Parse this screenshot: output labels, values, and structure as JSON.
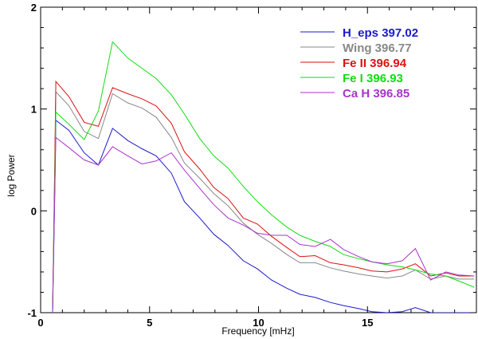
{
  "chart_data": {
    "type": "line",
    "title": "",
    "xlabel": "Frequency [mHz]",
    "ylabel": "log Power",
    "xlim": [
      0,
      20
    ],
    "ylim": [
      -1,
      2
    ],
    "xticks": [
      0,
      5,
      10,
      15
    ],
    "yticks": [
      -1,
      0,
      1,
      2
    ],
    "legend_position": "top-right",
    "series": [
      {
        "name": "H_eps 397.02",
        "color": "#1a1acc",
        "x": [
          0.55,
          0.65,
          0.7,
          1.3,
          2.0,
          2.65,
          3.3,
          4.0,
          4.65,
          5.3,
          6.0,
          6.6,
          7.3,
          7.95,
          8.6,
          9.3,
          9.95,
          10.6,
          11.3,
          11.9,
          12.6,
          13.3,
          13.9,
          14.6,
          15.2,
          15.9,
          16.6,
          17.2,
          17.9,
          18.6,
          19.2,
          19.9
        ],
        "y": [
          -1.0,
          0.2,
          0.89,
          0.79,
          0.57,
          0.45,
          0.81,
          0.69,
          0.61,
          0.54,
          0.37,
          0.09,
          -0.07,
          -0.23,
          -0.34,
          -0.49,
          -0.57,
          -0.68,
          -0.76,
          -0.82,
          -0.85,
          -0.9,
          -0.93,
          -0.96,
          -0.99,
          -1.0,
          -0.99,
          -0.95,
          -1.0,
          -1.0,
          -1.0,
          -1.0
        ]
      },
      {
        "name": "Wing 396.77",
        "color": "#888888",
        "x": [
          0.55,
          0.65,
          0.7,
          1.3,
          2.0,
          2.65,
          3.3,
          4.0,
          4.65,
          5.3,
          6.0,
          6.6,
          7.3,
          7.95,
          8.6,
          9.3,
          9.95,
          10.6,
          11.3,
          11.9,
          12.6,
          13.3,
          13.9,
          14.6,
          15.2,
          15.9,
          16.6,
          17.2,
          17.9,
          18.6,
          19.2,
          19.9
        ],
        "y": [
          -1.0,
          0.4,
          1.17,
          1.03,
          0.78,
          0.71,
          1.15,
          1.06,
          1.01,
          0.92,
          0.72,
          0.47,
          0.32,
          0.17,
          0.05,
          -0.12,
          -0.23,
          -0.32,
          -0.43,
          -0.51,
          -0.51,
          -0.56,
          -0.59,
          -0.62,
          -0.64,
          -0.66,
          -0.64,
          -0.58,
          -0.67,
          -0.64,
          -0.67,
          -0.67
        ]
      },
      {
        "name": "Fe II 396.94",
        "color": "#dd1111",
        "x": [
          0.55,
          0.65,
          0.7,
          1.3,
          2.0,
          2.65,
          3.3,
          4.0,
          4.65,
          5.3,
          6.0,
          6.6,
          7.3,
          7.95,
          8.6,
          9.3,
          9.95,
          10.6,
          11.3,
          11.9,
          12.6,
          13.3,
          13.9,
          14.6,
          15.2,
          15.9,
          16.6,
          17.2,
          17.9,
          18.6,
          19.2,
          19.9
        ],
        "y": [
          -1.0,
          0.5,
          1.27,
          1.12,
          0.87,
          0.83,
          1.21,
          1.15,
          1.1,
          1.03,
          0.86,
          0.58,
          0.41,
          0.23,
          0.12,
          -0.07,
          -0.13,
          -0.25,
          -0.36,
          -0.45,
          -0.44,
          -0.51,
          -0.53,
          -0.56,
          -0.59,
          -0.6,
          -0.57,
          -0.52,
          -0.64,
          -0.61,
          -0.64,
          -0.64
        ]
      },
      {
        "name": "Fe I 396.93",
        "color": "#11dd11",
        "x": [
          0.55,
          0.65,
          0.7,
          1.3,
          2.0,
          2.65,
          3.3,
          4.0,
          4.65,
          5.3,
          6.0,
          6.6,
          7.3,
          7.95,
          8.6,
          9.3,
          9.95,
          10.6,
          11.3,
          11.9,
          12.6,
          13.3,
          13.9,
          14.6,
          15.2,
          15.9,
          16.6,
          17.2,
          17.9,
          18.6,
          19.2,
          19.9
        ],
        "y": [
          -1.0,
          0.3,
          0.97,
          0.85,
          0.7,
          0.98,
          1.66,
          1.5,
          1.4,
          1.3,
          1.14,
          0.95,
          0.71,
          0.54,
          0.42,
          0.24,
          0.09,
          -0.04,
          -0.16,
          -0.24,
          -0.3,
          -0.35,
          -0.43,
          -0.47,
          -0.5,
          -0.53,
          -0.55,
          -0.58,
          -0.62,
          -0.64,
          -0.69,
          -0.75
        ]
      },
      {
        "name": "Ca H 396.85",
        "color": "#aa33cc",
        "x": [
          0.55,
          0.65,
          0.7,
          1.3,
          2.0,
          2.65,
          3.3,
          4.0,
          4.65,
          5.3,
          6.0,
          6.6,
          7.3,
          7.95,
          8.6,
          9.3,
          9.95,
          10.6,
          11.3,
          11.9,
          12.6,
          13.3,
          13.9,
          14.6,
          15.2,
          15.9,
          16.6,
          17.2,
          17.9,
          18.6,
          19.2,
          19.9
        ],
        "y": [
          -1.0,
          0.2,
          0.72,
          0.62,
          0.5,
          0.45,
          0.63,
          0.54,
          0.46,
          0.49,
          0.57,
          0.4,
          0.22,
          0.06,
          -0.07,
          -0.14,
          -0.22,
          -0.24,
          -0.24,
          -0.33,
          -0.35,
          -0.28,
          -0.38,
          -0.45,
          -0.5,
          -0.52,
          -0.49,
          -0.37,
          -0.68,
          -0.6,
          -0.63,
          -0.64
        ]
      }
    ]
  }
}
